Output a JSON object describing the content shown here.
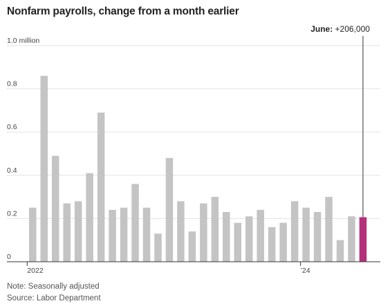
{
  "chart_data": {
    "type": "bar",
    "title": "Nonfarm payrolls, change from a month earlier",
    "y_unit_label": "1.0 million",
    "ylim": [
      0,
      1.0
    ],
    "yticks": [
      {
        "value": 0,
        "label": "0"
      },
      {
        "value": 0.2,
        "label": "0.2"
      },
      {
        "value": 0.4,
        "label": "0.4"
      },
      {
        "value": 0.6,
        "label": "0.6"
      },
      {
        "value": 0.8,
        "label": "0.8"
      },
      {
        "value": 1.0,
        "label": "1.0 million"
      }
    ],
    "grid": true,
    "x_tick_labels": [
      {
        "label": "2022",
        "at_index": 0
      },
      {
        "label": "’24",
        "at_index": 24
      }
    ],
    "values": [
      0.25,
      0.86,
      0.49,
      0.27,
      0.28,
      0.41,
      0.69,
      0.24,
      0.25,
      0.36,
      0.25,
      0.13,
      0.48,
      0.28,
      0.14,
      0.27,
      0.3,
      0.23,
      0.18,
      0.21,
      0.24,
      0.16,
      0.18,
      0.28,
      0.25,
      0.23,
      0.3,
      0.1,
      0.21,
      0.206
    ],
    "bar_color": "#c4c4c4",
    "highlight_color": "#b5307a",
    "highlight_index": 29,
    "annotation": {
      "bold": "June:",
      "text": " +206,000"
    }
  },
  "notes": {
    "line1": "Note: Seasonally adjusted",
    "line2": "Source: Labor Department"
  }
}
